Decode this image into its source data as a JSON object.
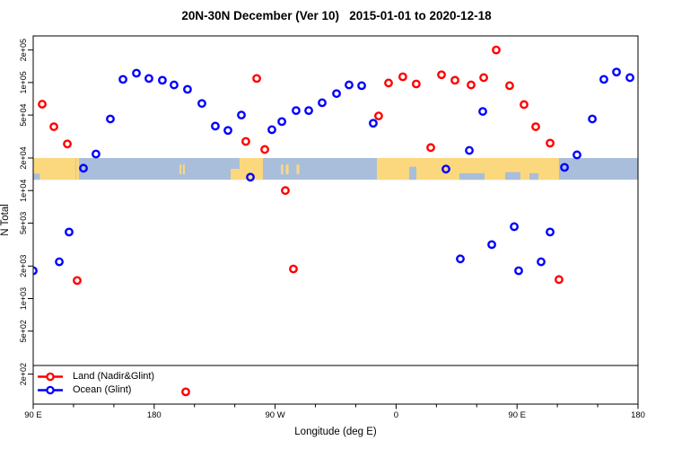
{
  "chart_data": {
    "type": "scatter",
    "title": "20N-30N December (Ver 10)   2015-01-01 to 2020-12-18",
    "xlabel": "Longitude (deg E)",
    "ylabel": "N Total",
    "x_axis": {
      "range_deg": [
        90,
        540
      ],
      "major_ticks": [
        {
          "pos": 90,
          "label": "90 E"
        },
        {
          "pos": 180,
          "label": "180"
        },
        {
          "pos": 270,
          "label": "90 W"
        },
        {
          "pos": 360,
          "label": "0"
        },
        {
          "pos": 450,
          "label": "90 E"
        },
        {
          "pos": 540,
          "label": "180"
        }
      ],
      "minor_tick_step": 30
    },
    "y_axis": {
      "scale": "log10",
      "range": [
        105,
        268000
      ],
      "ticks": [
        {
          "value": 200000,
          "label": "2e+05"
        },
        {
          "value": 100000,
          "label": "1e+05"
        },
        {
          "value": 50000,
          "label": "5e+04"
        },
        {
          "value": 20000,
          "label": "2e+04"
        },
        {
          "value": 10000,
          "label": "1e+04"
        },
        {
          "value": 5000,
          "label": "5e+03"
        },
        {
          "value": 2000,
          "label": "2e+03"
        },
        {
          "value": 1000,
          "label": "1e+03"
        },
        {
          "value": 500,
          "label": "5e+02"
        },
        {
          "value": 200,
          "label": "2e+02"
        }
      ]
    },
    "series": [
      {
        "name": "Land (Nadir&Glint)",
        "color": "#ff0000",
        "points": [
          [
            96.7,
            63000
          ],
          [
            105.4,
            39000
          ],
          [
            115.4,
            27000
          ],
          [
            122.7,
            1470
          ],
          [
            203.5,
            137
          ],
          [
            248.2,
            28500
          ],
          [
            256.3,
            109000
          ],
          [
            262.3,
            24000
          ],
          [
            277.6,
            10000
          ],
          [
            283.6,
            1880
          ],
          [
            347.0,
            49000
          ],
          [
            354.4,
            99000
          ],
          [
            365.0,
            113000
          ],
          [
            375.0,
            97000
          ],
          [
            385.8,
            25000
          ],
          [
            393.8,
            118000
          ],
          [
            403.8,
            105000
          ],
          [
            415.8,
            95000
          ],
          [
            425.2,
            111000
          ],
          [
            434.5,
            200000
          ],
          [
            444.5,
            93500
          ],
          [
            455.2,
            62500
          ],
          [
            463.9,
            39000
          ],
          [
            474.6,
            27500
          ],
          [
            481.2,
            1500
          ]
        ]
      },
      {
        "name": "Ocean (Glint)",
        "color": "#0000ff",
        "points": [
          [
            90.0,
            1810
          ],
          [
            109.4,
            2190
          ],
          [
            116.7,
            4130
          ],
          [
            127.4,
            16100
          ],
          [
            136.7,
            21800
          ],
          [
            147.4,
            46000
          ],
          [
            156.8,
            107000
          ],
          [
            166.8,
            122000
          ],
          [
            176.1,
            109000
          ],
          [
            186.1,
            105000
          ],
          [
            194.8,
            95000
          ],
          [
            204.8,
            86500
          ],
          [
            215.5,
            64000
          ],
          [
            225.5,
            39500
          ],
          [
            234.9,
            36000
          ],
          [
            244.9,
            50000
          ],
          [
            251.6,
            13300
          ],
          [
            267.6,
            36600
          ],
          [
            275.0,
            43500
          ],
          [
            285.6,
            55000
          ],
          [
            295.0,
            55000
          ],
          [
            305.0,
            65000
          ],
          [
            315.7,
            79000
          ],
          [
            325.0,
            95000
          ],
          [
            334.4,
            93500
          ],
          [
            343.0,
            42000
          ],
          [
            397.1,
            15800
          ],
          [
            407.8,
            2330
          ],
          [
            414.5,
            23500
          ],
          [
            424.5,
            54000
          ],
          [
            431.2,
            3160
          ],
          [
            447.9,
            4630
          ],
          [
            451.2,
            1810
          ],
          [
            467.9,
            2190
          ],
          [
            474.6,
            4130
          ],
          [
            485.3,
            16400
          ],
          [
            494.6,
            21400
          ],
          [
            506.0,
            46000
          ],
          [
            514.6,
            107000
          ],
          [
            524.0,
            125000
          ],
          [
            534.0,
            111000
          ]
        ]
      }
    ],
    "map_band": {
      "value_top": 20000,
      "value_bottom": 12600,
      "ocean_color": "#a9bedb",
      "land_color": "#fbd87d",
      "land_segments_deg": [
        [
          90,
          121.4
        ],
        [
          121.8,
          124.1
        ],
        [
          236.9,
          260.9
        ],
        [
          345.7,
          481.2
        ]
      ],
      "island_specks_deg": [
        [
          198.8,
          200.2
        ],
        [
          201.4,
          202.8
        ],
        [
          274.3,
          276.0
        ],
        [
          278.0,
          280.0
        ],
        [
          286.0,
          288.0
        ]
      ],
      "water_notches": [
        {
          "from": 90,
          "to": 95,
          "side": "bottom",
          "frac": 0.28
        },
        {
          "from": 236.9,
          "to": 243.5,
          "side": "top",
          "frac": 0.5
        },
        {
          "from": 369.7,
          "to": 375.1,
          "side": "bottom",
          "frac": 0.6
        },
        {
          "from": 407.1,
          "to": 425.8,
          "side": "bottom",
          "frac": 0.3
        },
        {
          "from": 441.2,
          "to": 452.5,
          "side": "bottom",
          "frac": 0.35
        },
        {
          "from": 459.2,
          "to": 465.9,
          "side": "bottom",
          "frac": 0.3
        }
      ]
    },
    "legend": {
      "items": [
        {
          "label": "Land (Nadir&Glint)",
          "color": "#ff0000"
        },
        {
          "label": "Ocean (Glint)",
          "color": "#0000ff"
        }
      ]
    }
  }
}
